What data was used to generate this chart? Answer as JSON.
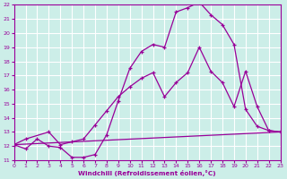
{
  "xlabel": "Windchill (Refroidissement éolien,°C)",
  "xlim": [
    0,
    23
  ],
  "ylim": [
    11,
    22
  ],
  "yticks": [
    11,
    12,
    13,
    14,
    15,
    16,
    17,
    18,
    19,
    20,
    21,
    22
  ],
  "xticks": [
    0,
    1,
    2,
    3,
    4,
    5,
    6,
    7,
    8,
    9,
    10,
    11,
    12,
    13,
    14,
    15,
    16,
    17,
    18,
    19,
    20,
    21,
    22,
    23
  ],
  "bg_color": "#cceee8",
  "line_color": "#990099",
  "grid_color": "#ffffff",
  "line1_x": [
    0,
    1,
    2,
    3,
    4,
    5,
    6,
    7,
    8,
    9,
    10,
    11,
    12,
    13,
    14,
    15,
    16,
    17,
    18,
    19,
    20,
    21,
    22,
    23
  ],
  "line1_y": [
    12.1,
    11.8,
    12.5,
    12.0,
    11.9,
    11.2,
    11.2,
    11.4,
    12.8,
    15.2,
    17.5,
    18.7,
    19.2,
    19.0,
    21.5,
    21.8,
    22.2,
    21.3,
    20.6,
    19.2,
    14.6,
    13.4,
    13.1,
    13.0
  ],
  "line2_x": [
    0,
    1,
    3,
    4,
    5,
    6,
    7,
    8,
    9,
    10,
    11,
    12,
    13,
    14,
    15,
    16,
    17,
    18,
    19,
    20,
    21,
    22,
    23
  ],
  "line2_y": [
    12.1,
    12.5,
    13.0,
    12.1,
    12.3,
    12.5,
    13.5,
    14.5,
    15.5,
    16.2,
    16.8,
    17.2,
    15.5,
    16.5,
    17.2,
    19.0,
    17.3,
    16.5,
    14.8,
    17.3,
    14.8,
    13.1,
    13.0
  ],
  "line3_x": [
    0,
    23
  ],
  "line3_y": [
    12.1,
    13.0
  ]
}
